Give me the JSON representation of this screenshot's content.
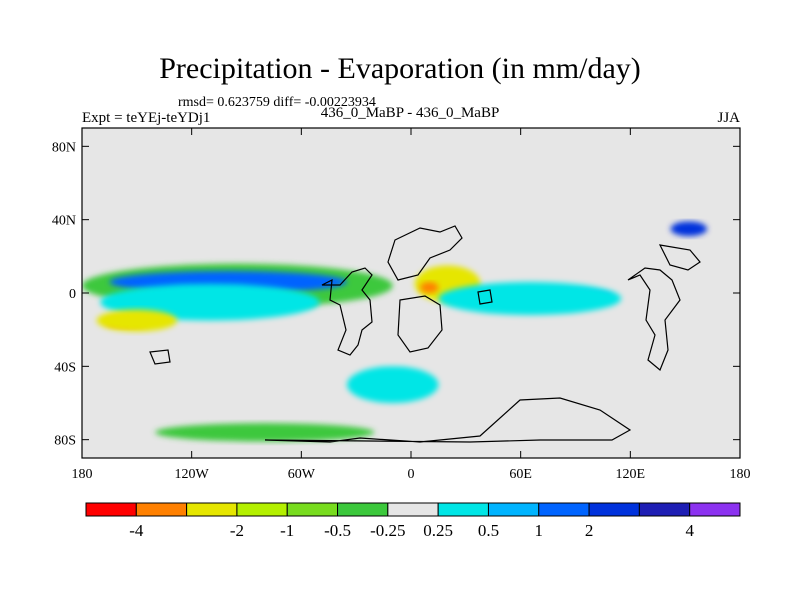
{
  "title": "Precipitation - Evaporation (in mm/day)",
  "stats": "rmsd= 0.623759 diff= -0.00223934",
  "left_string": "Expt = teYEj-teYDj1",
  "center_string": "436_0_MaBP - 436_0_MaBP",
  "right_string": "JJA",
  "chart_data": {
    "type": "filled-contour-map",
    "title": "Precipitation - Evaporation (in mm/day)",
    "xlim": [
      -180,
      180
    ],
    "ylim": [
      -90,
      90
    ],
    "x_ticks": [
      {
        "value": -180,
        "label": "180"
      },
      {
        "value": -120,
        "label": "120W"
      },
      {
        "value": -60,
        "label": "60W"
      },
      {
        "value": 0,
        "label": "0"
      },
      {
        "value": 60,
        "label": "60E"
      },
      {
        "value": 120,
        "label": "120E"
      },
      {
        "value": 180,
        "label": "180"
      }
    ],
    "y_ticks": [
      {
        "value": 80,
        "label": "80N"
      },
      {
        "value": 40,
        "label": "40N"
      },
      {
        "value": 0,
        "label": "0"
      },
      {
        "value": -40,
        "label": "40S"
      },
      {
        "value": -80,
        "label": "80S"
      }
    ],
    "colorbar": {
      "colors": [
        "#ff0000",
        "#ff8000",
        "#e6e600",
        "#b4f000",
        "#78dc1e",
        "#3cc83c",
        "#e6e6e6",
        "#00e6e6",
        "#00b4ff",
        "#0064ff",
        "#0032dc",
        "#1e1eb4",
        "#8c32f0"
      ],
      "labels": [
        "-4",
        "-2",
        "-1",
        "-0.5",
        "-0.25",
        "0.25",
        "0.5",
        "1",
        "2",
        "4"
      ],
      "label_after_box": [
        0,
        2,
        3,
        4,
        5,
        6,
        7,
        8,
        9,
        11
      ]
    },
    "background_color": "#e6e6e6",
    "features": [
      {
        "name": "equatorial-pacific-dry-band",
        "level": -0.5,
        "color": "#3cc83c",
        "lon": -95,
        "lat": 4,
        "rx": 85,
        "ry": 12
      },
      {
        "name": "equatorial-pacific-blue-band",
        "level": 2,
        "color": "#0064ff",
        "lon": -100,
        "lat": 6,
        "rx": 65,
        "ry": 6
      },
      {
        "name": "tropical-pacific-cyan",
        "level": 0.5,
        "color": "#00e6e6",
        "lon": -110,
        "lat": -5,
        "rx": 60,
        "ry": 10
      },
      {
        "name": "south-pacific-orange",
        "level": -2,
        "color": "#ff8000",
        "lon": -155,
        "lat": -16,
        "rx": 12,
        "ry": 3
      },
      {
        "name": "south-pacific-yellow",
        "level": -1,
        "color": "#e6e600",
        "lon": -150,
        "lat": -15,
        "rx": 22,
        "ry": 6
      },
      {
        "name": "central-yellow-patch",
        "level": -1,
        "color": "#e6e600",
        "lon": 20,
        "lat": 5,
        "rx": 18,
        "ry": 10
      },
      {
        "name": "central-orange-patch",
        "level": -2,
        "color": "#ff8000",
        "lon": 10,
        "lat": 3,
        "rx": 5,
        "ry": 3
      },
      {
        "name": "indian-ocean-blue-band",
        "level": 2,
        "color": "#0064ff",
        "lon": 70,
        "lat": -2,
        "rx": 40,
        "ry": 4
      },
      {
        "name": "east-equatorial-cyan",
        "level": 0.5,
        "color": "#00e6e6",
        "lon": 65,
        "lat": -3,
        "rx": 50,
        "ry": 9
      },
      {
        "name": "southern-ocean-cyan",
        "level": 0.5,
        "color": "#00e6e6",
        "lon": -10,
        "lat": -50,
        "rx": 25,
        "ry": 10
      },
      {
        "name": "antarctic-green-arc",
        "level": -0.5,
        "color": "#3cc83c",
        "lon": -80,
        "lat": -76,
        "rx": 60,
        "ry": 5
      },
      {
        "name": "northeast-blue-patch",
        "level": 2,
        "color": "#0032dc",
        "lon": 152,
        "lat": 35,
        "rx": 10,
        "ry": 4
      }
    ]
  }
}
